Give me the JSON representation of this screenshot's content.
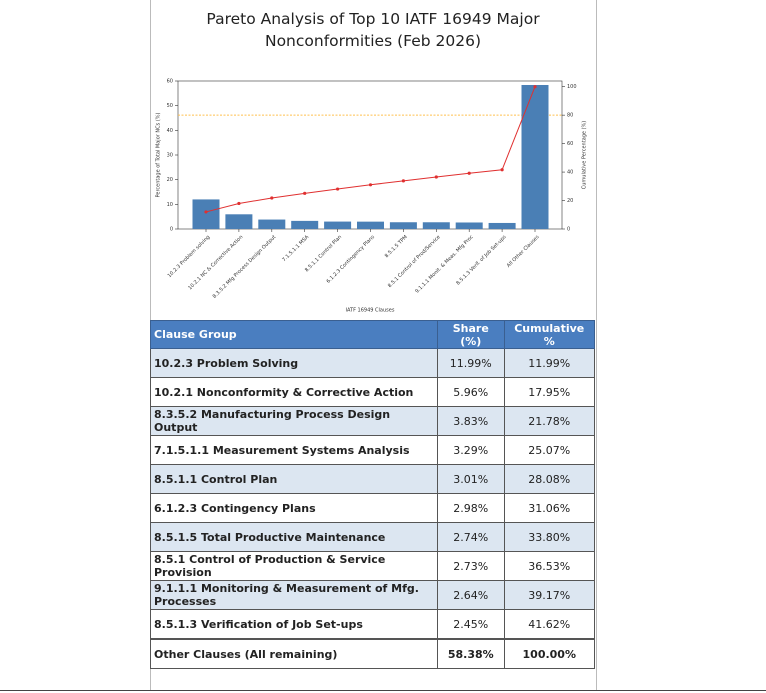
{
  "chart_data": {
    "type": "pareto",
    "title": "Pareto Analysis of Top 10 IATF 16949 Major Nonconformities (Feb 2026)",
    "x_label": "IATF 16949 Clauses",
    "y_label": "Percentage of Total Major NCs (%)",
    "y2_label": "Cumulative Percentage (%)",
    "categories": [
      "10.2.3 Problem solving",
      "10.2.1 NC & Corrective Action",
      "8.3.5.2 Mfg Process Design Output",
      "7.1.5.1.1 MSA",
      "8.5.1.1 Control Plan",
      "6.1.2.3 Contingency Plans",
      "8.5.1.5 TPM",
      "8.5.1 Control of Prod/Service",
      "9.1.1.1 Monit. & Meas. Mfg Proc",
      "8.5.1.3 Verif. of Job Set-ups",
      "All Other Clauses"
    ],
    "series": [
      {
        "type": "bar",
        "color": "#4a7fb5",
        "values": [
          11.99,
          5.96,
          3.83,
          3.29,
          3.01,
          2.98,
          2.74,
          2.73,
          2.64,
          2.45,
          58.38
        ]
      },
      {
        "type": "line",
        "axis": "y2",
        "color": "#e03030",
        "values": [
          11.99,
          17.95,
          21.78,
          25.07,
          28.08,
          31.06,
          33.8,
          36.53,
          39.17,
          41.62,
          100
        ]
      }
    ],
    "threshold": {
      "value": 80,
      "axis": "y2",
      "color": "#ffc04d"
    },
    "ylim": [
      0,
      60
    ],
    "yticks": [
      0,
      10,
      20,
      30,
      40,
      50,
      60
    ],
    "y2lim": [
      0,
      104
    ],
    "y2ticks": [
      0,
      20,
      40,
      60,
      80,
      100
    ]
  },
  "table": {
    "header": [
      "Clause Group",
      "Share (%)",
      "Cumulative %"
    ],
    "rows": [
      [
        "10.2.3 Problem Solving",
        "11.99%",
        "11.99%"
      ],
      [
        "10.2.1 Nonconformity & Corrective Action",
        "5.96%",
        "17.95%"
      ],
      [
        "8.3.5.2 Manufacturing Process Design Output",
        "3.83%",
        "21.78%"
      ],
      [
        "7.1.5.1.1 Measurement Systems Analysis",
        "3.29%",
        "25.07%"
      ],
      [
        "8.5.1.1 Control Plan",
        "3.01%",
        "28.08%"
      ],
      [
        "6.1.2.3 Contingency Plans",
        "2.98%",
        "31.06%"
      ],
      [
        "8.5.1.5 Total Productive Maintenance",
        "2.74%",
        "33.80%"
      ],
      [
        "8.5.1 Control of Production & Service Provision",
        "2.73%",
        "36.53%"
      ],
      [
        "9.1.1.1 Monitoring & Measurement of Mfg. Processes",
        "2.64%",
        "39.17%"
      ],
      [
        "8.5.1.3 Verification of Job Set-ups",
        "2.45%",
        "41.62%"
      ],
      [
        "Other Clauses (All remaining)",
        "58.38%",
        "100.00%"
      ]
    ]
  }
}
